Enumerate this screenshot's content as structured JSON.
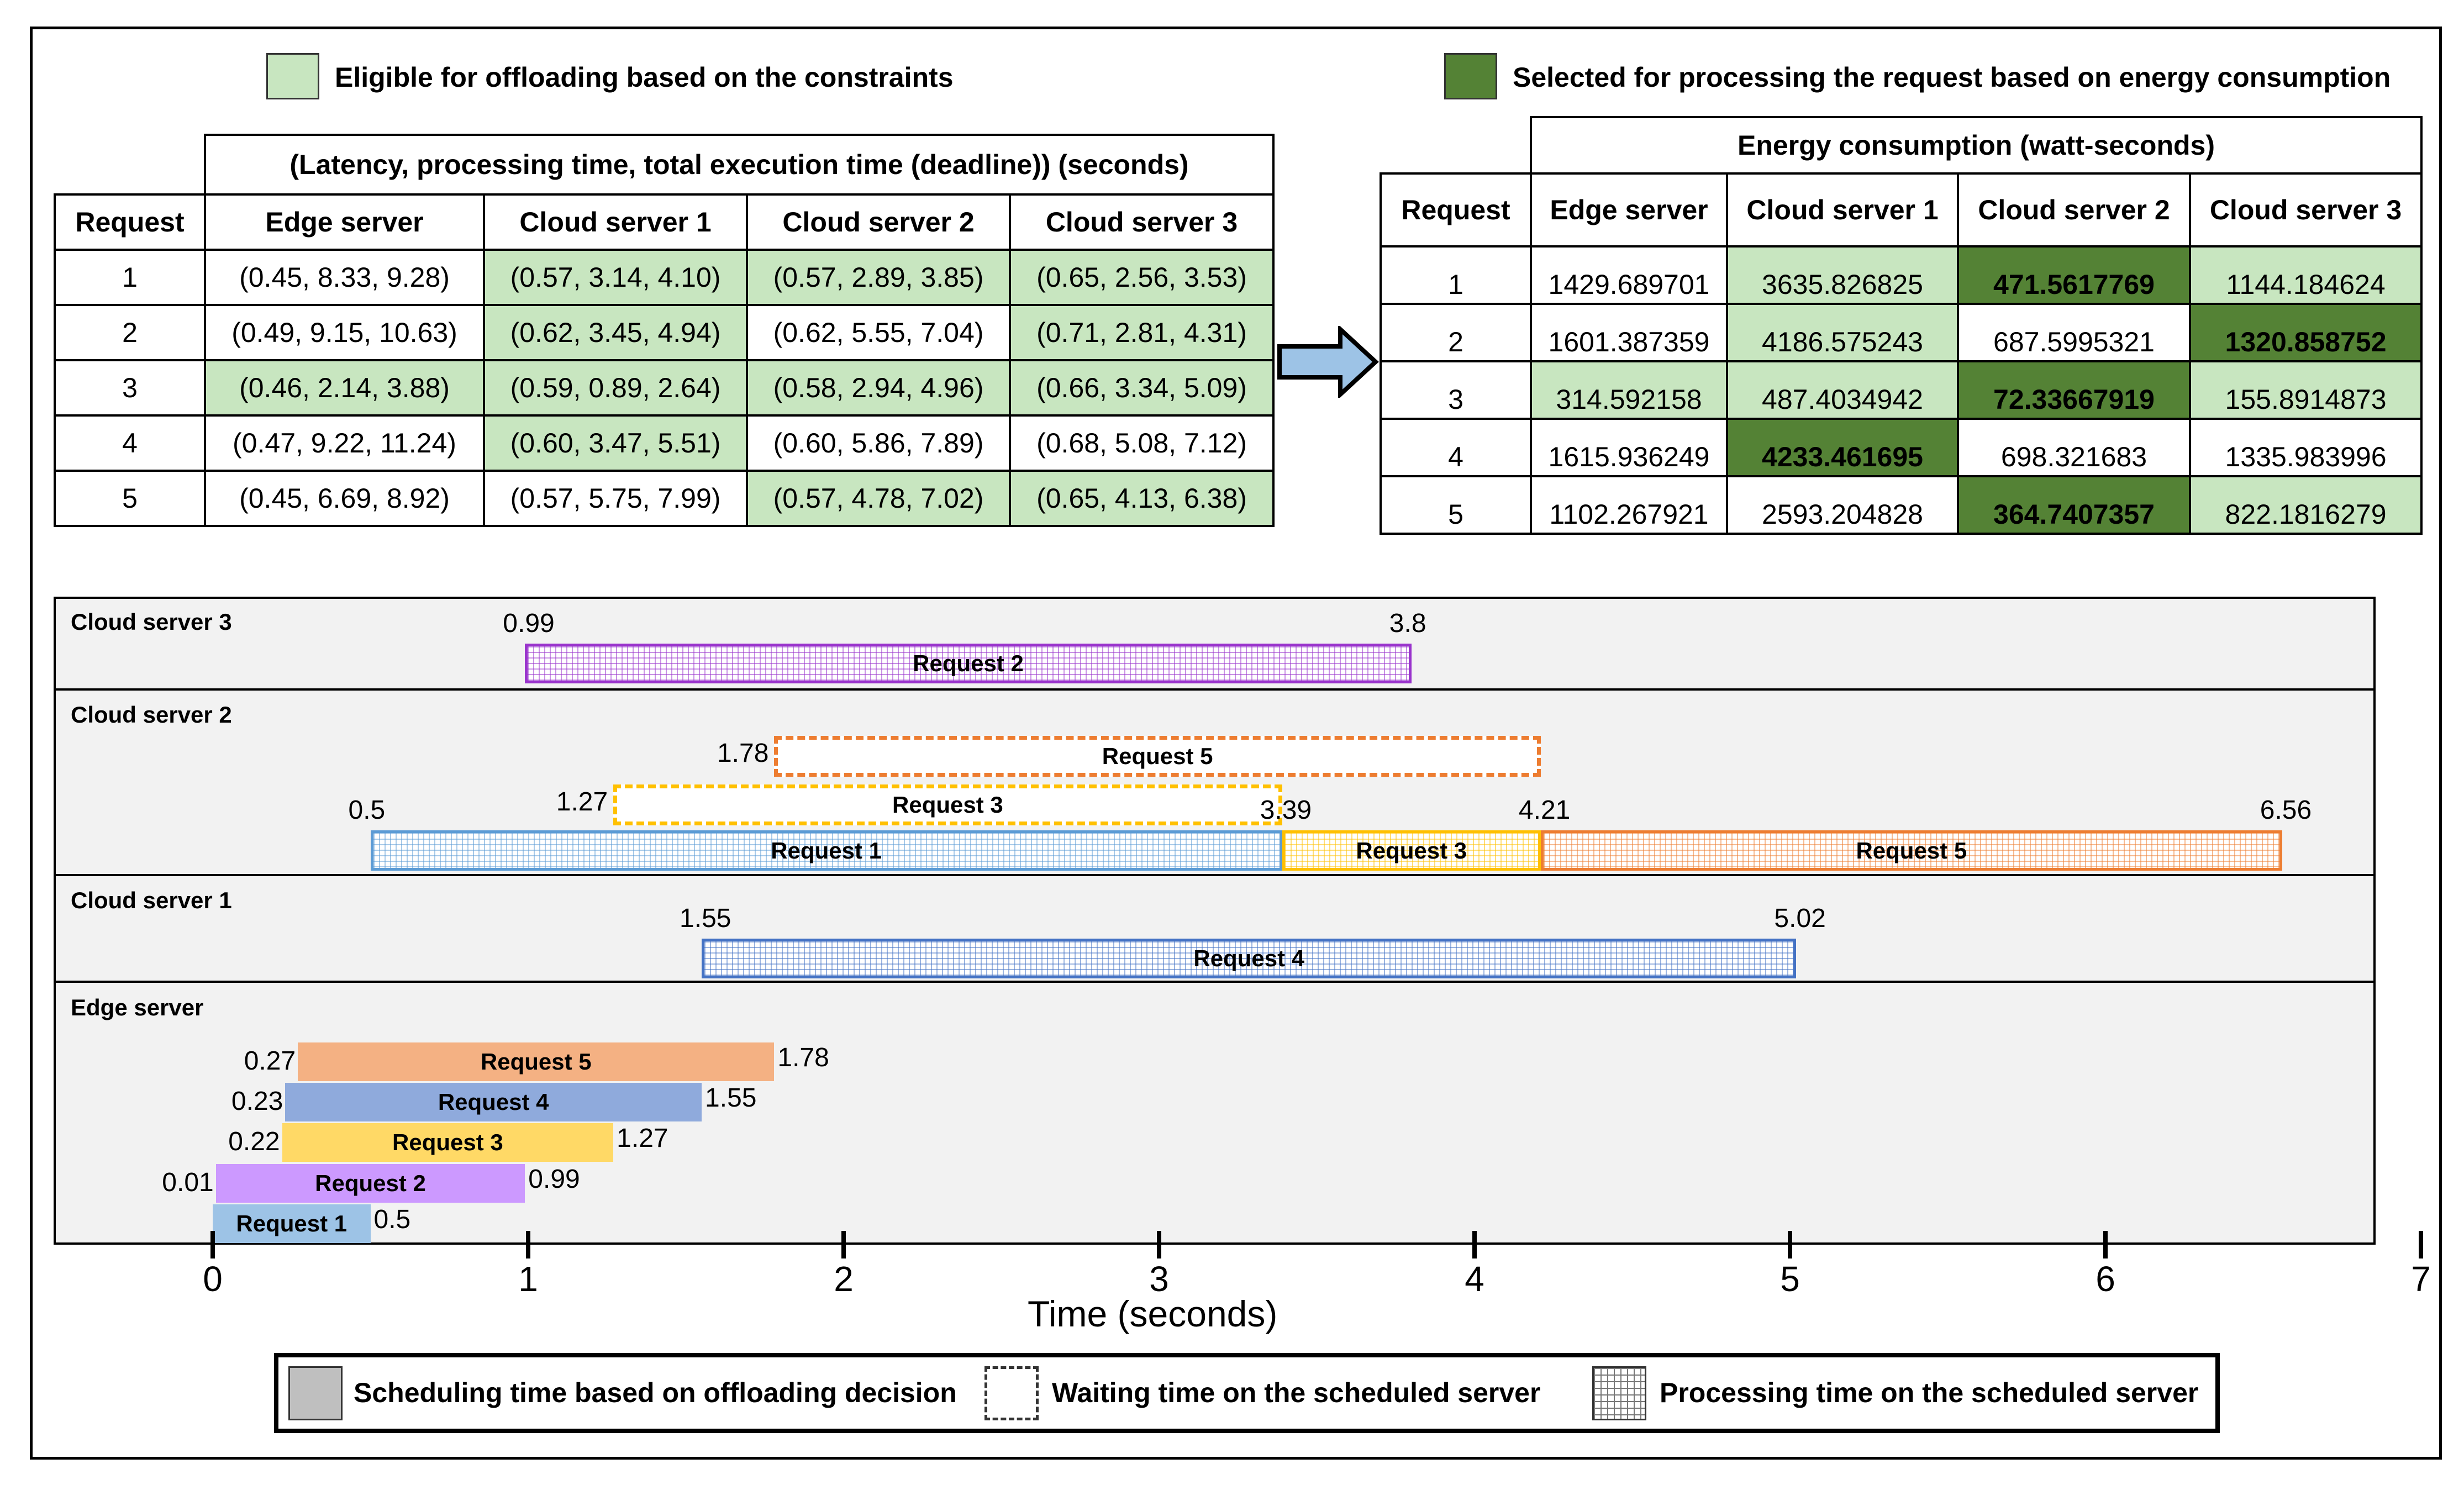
{
  "legend_top": {
    "eligible": "Eligible for offloading based on the constraints",
    "selected": "Selected for processing the request based on energy consumption",
    "eligible_color": "#c8e6c0",
    "selected_color": "#548235"
  },
  "table_left": {
    "group_header": "(Latency, processing time, total execution time (deadline)) (seconds)",
    "columns": [
      "Request",
      "Edge server",
      "Cloud server 1",
      "Cloud server 2",
      "Cloud server 3"
    ],
    "rows": [
      {
        "req": "1",
        "c": [
          "(0.45, 8.33, 9.28)",
          "(0.57, 3.14, 4.10)",
          "(0.57, 2.89, 3.85)",
          "(0.65, 2.56, 3.53)"
        ],
        "eligible": [
          false,
          true,
          true,
          true
        ]
      },
      {
        "req": "2",
        "c": [
          "(0.49, 9.15, 10.63)",
          "(0.62, 3.45, 4.94)",
          "(0.62, 5.55, 7.04)",
          "(0.71, 2.81, 4.31)"
        ],
        "eligible": [
          false,
          true,
          false,
          true
        ]
      },
      {
        "req": "3",
        "c": [
          "(0.46, 2.14, 3.88)",
          "(0.59, 0.89, 2.64)",
          "(0.58, 2.94, 4.96)",
          "(0.66, 3.34, 5.09)"
        ],
        "eligible": [
          true,
          true,
          true,
          true
        ]
      },
      {
        "req": "4",
        "c": [
          "(0.47, 9.22, 11.24)",
          "(0.60, 3.47, 5.51)",
          "(0.60, 5.86, 7.89)",
          "(0.68, 5.08, 7.12)"
        ],
        "eligible": [
          false,
          true,
          false,
          false
        ]
      },
      {
        "req": "5",
        "c": [
          "(0.45, 6.69, 8.92)",
          "(0.57, 5.75, 7.99)",
          "(0.57, 4.78, 7.02)",
          "(0.65, 4.13, 6.38)"
        ],
        "eligible": [
          false,
          false,
          true,
          true
        ]
      }
    ]
  },
  "table_right": {
    "group_header": "Energy consumption (watt-seconds)",
    "columns": [
      "Request",
      "Edge server",
      "Cloud server 1",
      "Cloud server 2",
      "Cloud server 3"
    ],
    "rows": [
      {
        "req": "1",
        "c": [
          "1429.689701",
          "3635.826825",
          "471.5617769",
          "1144.184624"
        ],
        "state": [
          "",
          "e",
          "s",
          "e"
        ]
      },
      {
        "req": "2",
        "c": [
          "1601.387359",
          "4186.575243",
          "687.5995321",
          "1320.858752"
        ],
        "state": [
          "",
          "e",
          "",
          "s"
        ]
      },
      {
        "req": "3",
        "c": [
          "314.592158",
          "487.4034942",
          "72.33667919",
          "155.8914873"
        ],
        "state": [
          "e",
          "e",
          "s",
          "e"
        ]
      },
      {
        "req": "4",
        "c": [
          "1615.936249",
          "4233.461695",
          "698.321683",
          "1335.983996"
        ],
        "state": [
          "",
          "s",
          "",
          ""
        ]
      },
      {
        "req": "5",
        "c": [
          "1102.267921",
          "2593.204828",
          "364.7407357",
          "822.1816279"
        ],
        "state": [
          "",
          "",
          "s",
          "e"
        ]
      }
    ]
  },
  "gantt": {
    "lanes": [
      "Cloud server 3",
      "Cloud server 2",
      "Cloud server 1",
      "Edge server"
    ],
    "axis_title": "Time (seconds)",
    "ticks": [
      "0",
      "1",
      "2",
      "3",
      "4",
      "5",
      "6",
      "7"
    ],
    "bars": [
      {
        "label": "Request 2",
        "start": 0.99,
        "end": 3.8,
        "kind": "processing",
        "color": "#9933cc",
        "lane": "Cloud server 3",
        "start_lbl": "0.99",
        "end_lbl": "3.8"
      },
      {
        "label": "Request 5",
        "start": 1.78,
        "end": 4.21,
        "kind": "waiting",
        "color": "#ed7d31",
        "lane": "Cloud server 2",
        "start_lbl": "1.78",
        "end_lbl": ""
      },
      {
        "label": "Request 3",
        "start": 1.27,
        "end": 3.39,
        "kind": "waiting",
        "color": "#ffc000",
        "lane": "Cloud server 2",
        "start_lbl": "1.27",
        "end_lbl": ""
      },
      {
        "label": "Request 1",
        "start": 0.5,
        "end": 3.39,
        "kind": "processing",
        "color": "#5b9bd5",
        "lane": "Cloud server 2",
        "start_lbl": "0.5",
        "end_lbl": "3.39"
      },
      {
        "label": "Request 3",
        "start": 3.39,
        "end": 4.21,
        "kind": "processing",
        "color": "#ffc000",
        "lane": "Cloud server 2",
        "start_lbl": "",
        "end_lbl": "4.21"
      },
      {
        "label": "Request 5",
        "start": 4.21,
        "end": 6.56,
        "kind": "processing",
        "color": "#ed7d31",
        "lane": "Cloud server 2",
        "start_lbl": "",
        "end_lbl": "6.56"
      },
      {
        "label": "Request 4",
        "start": 1.55,
        "end": 5.02,
        "kind": "processing",
        "color": "#4472c4",
        "lane": "Cloud server 1",
        "start_lbl": "1.55",
        "end_lbl": "5.02"
      },
      {
        "label": "Request 5",
        "start": 0.27,
        "end": 1.78,
        "kind": "scheduling",
        "color": "#f4b183",
        "lane": "Edge server",
        "start_lbl": "0.27",
        "end_lbl": "1.78"
      },
      {
        "label": "Request 4",
        "start": 0.23,
        "end": 1.55,
        "kind": "scheduling",
        "color": "#8faadc",
        "lane": "Edge server",
        "start_lbl": "0.23",
        "end_lbl": "1.55"
      },
      {
        "label": "Request 3",
        "start": 0.22,
        "end": 1.27,
        "kind": "scheduling",
        "color": "#ffd966",
        "lane": "Edge server",
        "start_lbl": "0.22",
        "end_lbl": "1.27"
      },
      {
        "label": "Request 2",
        "start": 0.01,
        "end": 0.99,
        "kind": "scheduling",
        "color": "#cc99ff",
        "lane": "Edge server",
        "start_lbl": "0.01",
        "end_lbl": "0.99"
      },
      {
        "label": "Request 1",
        "start": 0.0,
        "end": 0.5,
        "kind": "scheduling",
        "color": "#9dc3e6",
        "lane": "Edge server",
        "start_lbl": "",
        "end_lbl": "0.5"
      }
    ]
  },
  "legend_bottom": {
    "scheduling": "Scheduling time based on offloading decision",
    "waiting": "Waiting time on the scheduled server",
    "processing": "Processing time on the scheduled server"
  }
}
